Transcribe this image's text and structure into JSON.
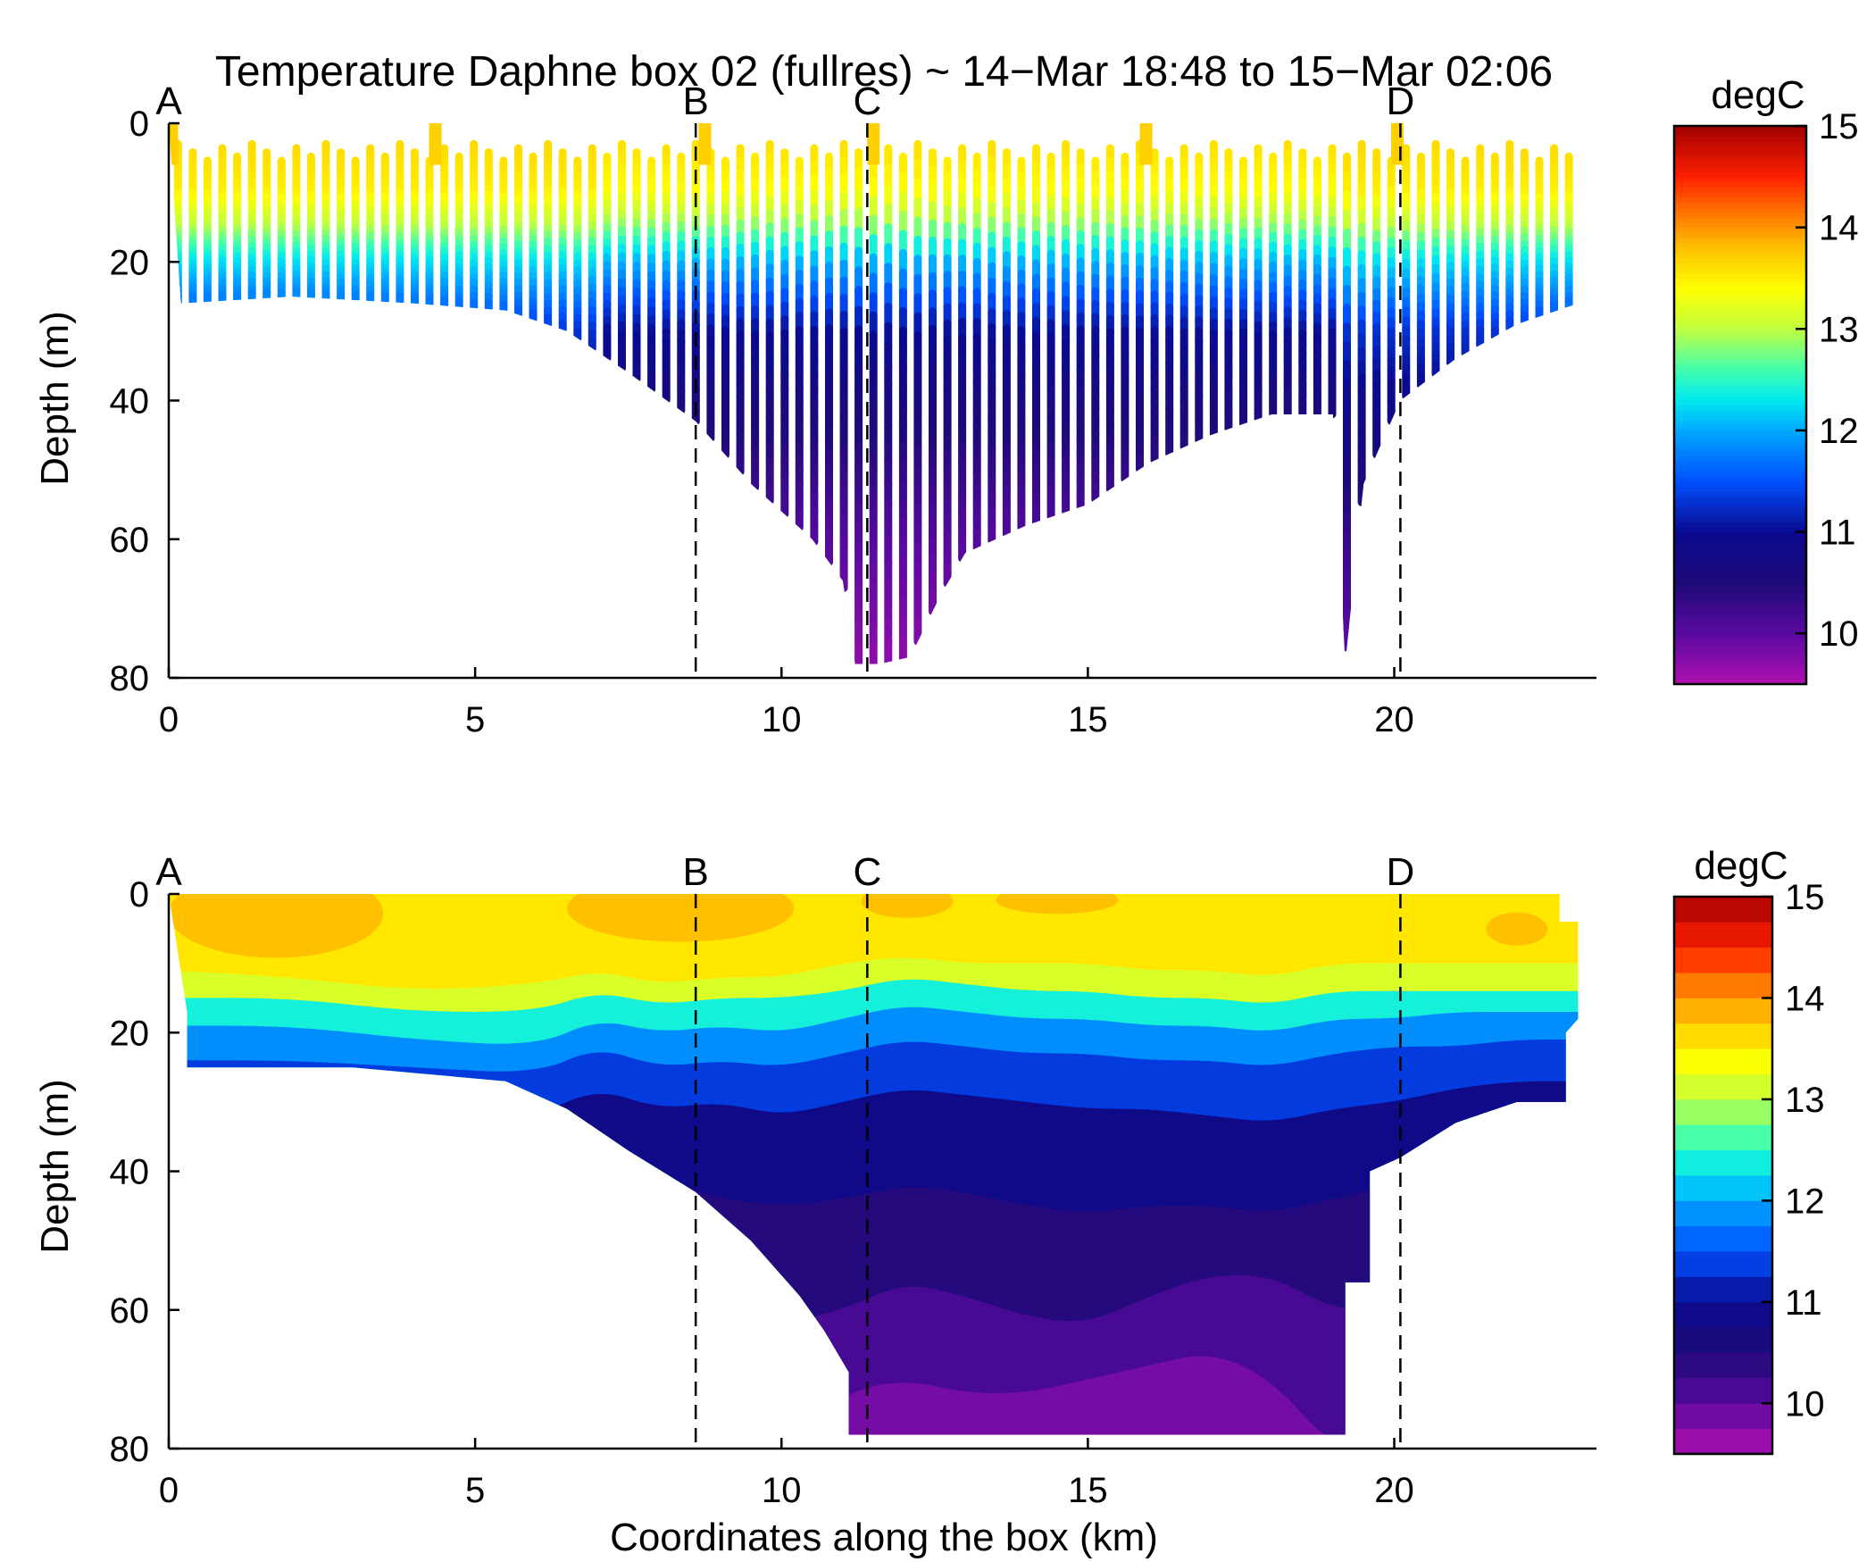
{
  "figure": {
    "title": "Temperature Daphne box 02 (fullres) ~ 14−Mar 18:48 to 15−Mar 02:06"
  },
  "colormap": {
    "stops": [
      [
        "#b010b0",
        9.5
      ],
      [
        "#5a0aa0",
        10.0
      ],
      [
        "#1e0a78",
        10.5
      ],
      [
        "#0a0a90",
        11.0
      ],
      [
        "#0050ff",
        11.5
      ],
      [
        "#00a8ff",
        12.0
      ],
      [
        "#00e8f0",
        12.3
      ],
      [
        "#40ffb0",
        12.6
      ],
      [
        "#c0ff40",
        13.0
      ],
      [
        "#ffff00",
        13.4
      ],
      [
        "#ffc000",
        13.8
      ],
      [
        "#ff8000",
        14.1
      ],
      [
        "#ff2000",
        14.5
      ],
      [
        "#a00000",
        15.0
      ]
    ]
  },
  "chart_data": [
    {
      "type": "scatter",
      "subtype": "yo-yo profile section",
      "xlabel": "",
      "ylabel": "Depth (m)",
      "xlim": [
        0,
        23.3
      ],
      "ylim": [
        80,
        0
      ],
      "xticks": [
        "0",
        "5",
        "10",
        "15",
        "20"
      ],
      "yticks": [
        "0",
        "20",
        "40",
        "60",
        "80"
      ],
      "colorbar": {
        "label": "degC",
        "range": [
          9.5,
          15
        ],
        "ticks": [
          "15",
          "14",
          "13",
          "12",
          "11",
          "10"
        ],
        "style": "continuous"
      },
      "markers": [
        {
          "label": "A",
          "x": 0.0
        },
        {
          "label": "B",
          "x": 8.6
        },
        {
          "label": "C",
          "x": 11.4
        },
        {
          "label": "D",
          "x": 20.1
        }
      ],
      "bottom_depth_profile": {
        "x": [
          0.2,
          2,
          4,
          5.5,
          6.5,
          7.5,
          8.6,
          9.5,
          10.5,
          11.0,
          11.2,
          11.6,
          12.1,
          12.6,
          13.0,
          14,
          15,
          16,
          17,
          18,
          19.0,
          19.2,
          19.5,
          20.1,
          21,
          22,
          23.0
        ],
        "depth": [
          26,
          25,
          26,
          27,
          30,
          36,
          43,
          52,
          60,
          66,
          78,
          78,
          77,
          68,
          62,
          58,
          55,
          49,
          45,
          42,
          42,
          78,
          52,
          40,
          34,
          29,
          26
        ]
      },
      "temperature_profile": {
        "depth": [
          0,
          10,
          15,
          20,
          25,
          30,
          40,
          50,
          60,
          70,
          80
        ],
        "temperature": [
          13.7,
          13.5,
          13.0,
          12.3,
          11.8,
          11.3,
          10.9,
          10.6,
          10.3,
          10.1,
          9.9
        ]
      },
      "spike_cast_positions": [
        0.05,
        4.35,
        8.75,
        11.5,
        15.95,
        20.05
      ]
    },
    {
      "type": "heatmap",
      "subtype": "filled contour section",
      "xlabel": "Coordinates along the box (km)",
      "ylabel": "Depth (m)",
      "xlim": [
        0,
        23.3
      ],
      "ylim": [
        80,
        0
      ],
      "xticks": [
        "0",
        "5",
        "10",
        "15",
        "20"
      ],
      "yticks": [
        "0",
        "20",
        "40",
        "60",
        "80"
      ],
      "colorbar": {
        "label": "degC",
        "range": [
          9.5,
          15
        ],
        "ticks": [
          "15",
          "14",
          "13",
          "12",
          "11",
          "10"
        ],
        "style": "discrete",
        "levels": 22
      },
      "markers": [
        {
          "label": "A",
          "x": 0.0
        },
        {
          "label": "B",
          "x": 8.6
        },
        {
          "label": "C",
          "x": 11.4
        },
        {
          "label": "D",
          "x": 20.1
        }
      ],
      "domain_outline": {
        "x": [
          0,
          0.3,
          0.3,
          3,
          5.5,
          6.5,
          7.5,
          8.6,
          9.5,
          10.3,
          10.7,
          11.1,
          11.1,
          19.2,
          19.2,
          19.6,
          19.6,
          20.1,
          21,
          22.0,
          22.8,
          22.8,
          23.0,
          23.0,
          22.7
        ],
        "depth": [
          0,
          17,
          25,
          25,
          27,
          31,
          37,
          43,
          50,
          58,
          63,
          69,
          78,
          78,
          56,
          56,
          40,
          38,
          33,
          30,
          30,
          20,
          18,
          4,
          4
        ]
      },
      "surface_warm_patches": [
        {
          "x": [
            0,
            3.5
          ],
          "depth": [
            0,
            8
          ]
        },
        {
          "x": [
            6.5,
            10.2
          ],
          "depth": [
            0,
            6
          ]
        },
        {
          "x": [
            11.3,
            12.8
          ],
          "depth": [
            0,
            3
          ]
        },
        {
          "x": [
            13.5,
            15.5
          ],
          "depth": [
            0,
            2.5
          ]
        },
        {
          "x": [
            21.5,
            22.5
          ],
          "depth": [
            4,
            7
          ]
        }
      ],
      "isotherm_depths": {
        "x": [
          0,
          2,
          4,
          6,
          7,
          8,
          9,
          10,
          11,
          12,
          13,
          14,
          15,
          16,
          17,
          18,
          19,
          20,
          21,
          22,
          23
        ],
        "t13.4": [
          11,
          12,
          14,
          13,
          11,
          13,
          12,
          12,
          10,
          9,
          10,
          10,
          10,
          11,
          11,
          12,
          10,
          10,
          10,
          10,
          10
        ],
        "t12.6": [
          15,
          15,
          17,
          17,
          14,
          16,
          15,
          15,
          14,
          12,
          13,
          14,
          14,
          15,
          15,
          16,
          14,
          14,
          14,
          14,
          14
        ],
        "t12.0": [
          19,
          19,
          21,
          22,
          18,
          20,
          19,
          20,
          18,
          16,
          17,
          18,
          18,
          19,
          19,
          20,
          18,
          18,
          17,
          17,
          17
        ],
        "t11.5": [
          24,
          24,
          25,
          26,
          22,
          25,
          24,
          25,
          23,
          21,
          22,
          23,
          23,
          24,
          24,
          25,
          23,
          22,
          22,
          21,
          21
        ],
        "t11.0": [
          30,
          30,
          30,
          32,
          28,
          31,
          30,
          32,
          30,
          28,
          29,
          30,
          31,
          31,
          32,
          33,
          31,
          30,
          28,
          27,
          27
        ],
        "t10.5": [
          45,
          45,
          45,
          45,
          42,
          41,
          44,
          45,
          44,
          42,
          43,
          45,
          46,
          45,
          45,
          46,
          44,
          42,
          40,
          40,
          40
        ],
        "t10.2": [
          60,
          60,
          60,
          60,
          58,
          56,
          58,
          62,
          60,
          56,
          58,
          61,
          62,
          58,
          55,
          55,
          60,
          60,
          60,
          60,
          60
        ],
        "t10.0": [
          80,
          80,
          80,
          80,
          80,
          80,
          80,
          80,
          72,
          70,
          72,
          72,
          70,
          68,
          66,
          70,
          80,
          80,
          80,
          80,
          80
        ]
      }
    }
  ]
}
